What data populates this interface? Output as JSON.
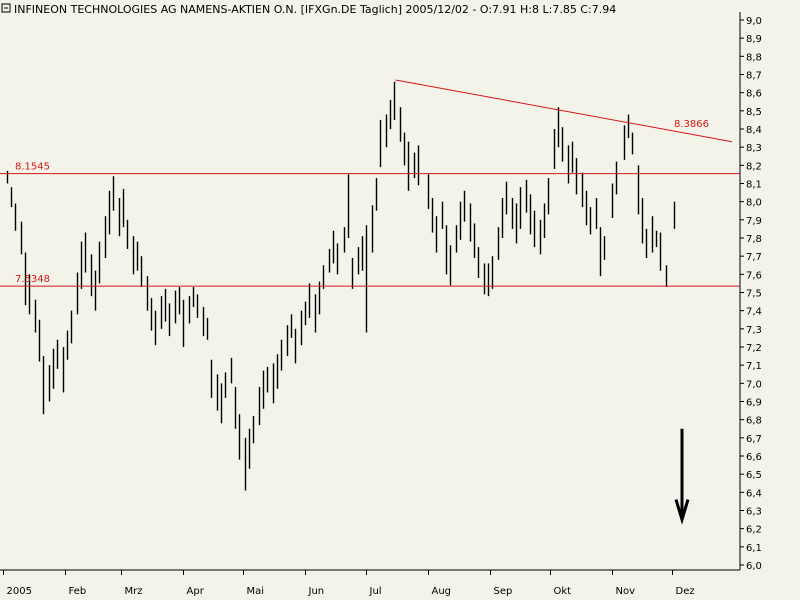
{
  "header": {
    "title": "INFINEON TECHNOLOGIES AG NAMENS-AKTIEN O.N. [IFXGn.DE  Taglich] 2005/12/02 - O:7.91 H:8 L:7.85 C:7.94"
  },
  "colors": {
    "background": "#f3f3ea",
    "bars": "#000000",
    "lines": "#d01818",
    "axis": "#000000"
  },
  "chart_data": {
    "type": "ohlc",
    "title": "",
    "xlabel": "",
    "ylabel": "",
    "ylim": [
      6.0,
      9.0
    ],
    "y_ticks": [
      "9,0",
      "8,9",
      "8,8",
      "8,7",
      "8,6",
      "8,5",
      "8,4",
      "8,3",
      "8,2",
      "8,1",
      "8,0",
      "7,9",
      "7,8",
      "7,7",
      "7,6",
      "7,5",
      "7,4",
      "7,3",
      "7,2",
      "7,1",
      "7,0",
      "6,9",
      "6,8",
      "6,7",
      "6,6",
      "6,5",
      "6,4",
      "6,3",
      "6,2",
      "6,1",
      "6,0"
    ],
    "x_range": [
      "2005-01-01",
      "2005-12-31"
    ],
    "month_ticks": [
      {
        "date": "2005-01-01",
        "label": "2005"
      },
      {
        "date": "2005-02-01",
        "label": "Feb"
      },
      {
        "date": "2005-03-01",
        "label": "Mrz"
      },
      {
        "date": "2005-04-01",
        "label": "Apr"
      },
      {
        "date": "2005-05-01",
        "label": "Mai"
      },
      {
        "date": "2005-06-01",
        "label": "Jun"
      },
      {
        "date": "2005-07-01",
        "label": "Jul"
      },
      {
        "date": "2005-08-01",
        "label": "Aug"
      },
      {
        "date": "2005-09-01",
        "label": "Sep"
      },
      {
        "date": "2005-10-01",
        "label": "Okt"
      },
      {
        "date": "2005-11-01",
        "label": "Nov"
      },
      {
        "date": "2005-12-01",
        "label": "Dez"
      }
    ],
    "ranges": [
      [
        "2005-01-03",
        8.1,
        8.17
      ],
      [
        "2005-01-05",
        7.97,
        8.08
      ],
      [
        "2005-01-07",
        7.84,
        7.99
      ],
      [
        "2005-01-10",
        7.71,
        7.89
      ],
      [
        "2005-01-12",
        7.43,
        7.72
      ],
      [
        "2005-01-14",
        7.38,
        7.6
      ],
      [
        "2005-01-17",
        7.28,
        7.46
      ],
      [
        "2005-01-19",
        7.12,
        7.35
      ],
      [
        "2005-01-21",
        6.83,
        7.15
      ],
      [
        "2005-01-24",
        6.9,
        7.1
      ],
      [
        "2005-01-26",
        6.97,
        7.19
      ],
      [
        "2005-01-28",
        7.08,
        7.24
      ],
      [
        "2005-01-31",
        6.95,
        7.2
      ],
      [
        "2005-02-02",
        7.13,
        7.29
      ],
      [
        "2005-02-04",
        7.22,
        7.4
      ],
      [
        "2005-02-07",
        7.38,
        7.61
      ],
      [
        "2005-02-09",
        7.52,
        7.78
      ],
      [
        "2005-02-11",
        7.61,
        7.83
      ],
      [
        "2005-02-14",
        7.48,
        7.71
      ],
      [
        "2005-02-16",
        7.4,
        7.62
      ],
      [
        "2005-02-18",
        7.55,
        7.78
      ],
      [
        "2005-02-21",
        7.69,
        7.92
      ],
      [
        "2005-02-23",
        7.82,
        8.06
      ],
      [
        "2005-02-25",
        7.95,
        8.14
      ],
      [
        "2005-02-28",
        7.81,
        8.02
      ],
      [
        "2005-03-02",
        7.86,
        8.07
      ],
      [
        "2005-03-04",
        7.74,
        7.9
      ],
      [
        "2005-03-07",
        7.6,
        7.81
      ],
      [
        "2005-03-09",
        7.62,
        7.78
      ],
      [
        "2005-03-11",
        7.53,
        7.7
      ],
      [
        "2005-03-14",
        7.4,
        7.59
      ],
      [
        "2005-03-16",
        7.29,
        7.47
      ],
      [
        "2005-03-18",
        7.21,
        7.4
      ],
      [
        "2005-03-21",
        7.3,
        7.48
      ],
      [
        "2005-03-23",
        7.34,
        7.52
      ],
      [
        "2005-03-25",
        7.26,
        7.44
      ],
      [
        "2005-03-28",
        7.33,
        7.51
      ],
      [
        "2005-03-30",
        7.38,
        7.53
      ],
      [
        "2005-04-01",
        7.2,
        7.46
      ],
      [
        "2005-04-04",
        7.33,
        7.48
      ],
      [
        "2005-04-06",
        7.42,
        7.53
      ],
      [
        "2005-04-08",
        7.36,
        7.49
      ],
      [
        "2005-04-11",
        7.26,
        7.42
      ],
      [
        "2005-04-13",
        7.24,
        7.36
      ],
      [
        "2005-04-15",
        6.92,
        7.13
      ],
      [
        "2005-04-18",
        6.85,
        7.05
      ],
      [
        "2005-04-20",
        6.78,
        7.0
      ],
      [
        "2005-04-22",
        6.92,
        7.06
      ],
      [
        "2005-04-25",
        7.0,
        7.14
      ],
      [
        "2005-04-27",
        6.75,
        6.98
      ],
      [
        "2005-04-29",
        6.58,
        6.83
      ],
      [
        "2005-05-02",
        6.41,
        6.7
      ],
      [
        "2005-05-04",
        6.53,
        6.75
      ],
      [
        "2005-05-06",
        6.67,
        6.82
      ],
      [
        "2005-05-09",
        6.77,
        6.98
      ],
      [
        "2005-05-11",
        6.86,
        7.07
      ],
      [
        "2005-05-13",
        6.95,
        7.09
      ],
      [
        "2005-05-16",
        6.89,
        7.11
      ],
      [
        "2005-05-18",
        6.97,
        7.16
      ],
      [
        "2005-05-20",
        7.07,
        7.24
      ],
      [
        "2005-05-23",
        7.15,
        7.32
      ],
      [
        "2005-05-25",
        7.25,
        7.38
      ],
      [
        "2005-05-27",
        7.11,
        7.3
      ],
      [
        "2005-05-30",
        7.21,
        7.4
      ],
      [
        "2005-06-01",
        7.32,
        7.45
      ],
      [
        "2005-06-03",
        7.36,
        7.55
      ],
      [
        "2005-06-06",
        7.28,
        7.49
      ],
      [
        "2005-06-08",
        7.38,
        7.56
      ],
      [
        "2005-06-10",
        7.52,
        7.65
      ],
      [
        "2005-06-13",
        7.61,
        7.74
      ],
      [
        "2005-06-15",
        7.66,
        7.84
      ],
      [
        "2005-06-17",
        7.6,
        7.77
      ],
      [
        "2005-06-20",
        7.72,
        7.86
      ],
      [
        "2005-06-22",
        7.8,
        8.15
      ],
      [
        "2005-06-24",
        7.52,
        7.69
      ],
      [
        "2005-06-27",
        7.6,
        7.75
      ],
      [
        "2005-06-29",
        7.62,
        7.81
      ],
      [
        "2005-07-01",
        7.28,
        7.87
      ],
      [
        "2005-07-04",
        7.72,
        7.98
      ],
      [
        "2005-07-06",
        7.95,
        8.13
      ],
      [
        "2005-07-08",
        8.19,
        8.45
      ],
      [
        "2005-07-11",
        8.3,
        8.48
      ],
      [
        "2005-07-13",
        8.4,
        8.56
      ],
      [
        "2005-07-15",
        8.45,
        8.66
      ],
      [
        "2005-07-18",
        8.33,
        8.52
      ],
      [
        "2005-07-20",
        8.2,
        8.38
      ],
      [
        "2005-07-22",
        8.06,
        8.33
      ],
      [
        "2005-07-25",
        8.13,
        8.27
      ],
      [
        "2005-07-27",
        8.09,
        8.31
      ],
      [
        "2005-08-01",
        7.96,
        8.15
      ],
      [
        "2005-08-03",
        7.83,
        8.02
      ],
      [
        "2005-08-05",
        7.72,
        7.92
      ],
      [
        "2005-08-08",
        7.85,
        8.0
      ],
      [
        "2005-08-10",
        7.6,
        7.87
      ],
      [
        "2005-08-12",
        7.54,
        7.76
      ],
      [
        "2005-08-15",
        7.72,
        7.87
      ],
      [
        "2005-08-17",
        7.79,
        8.0
      ],
      [
        "2005-08-19",
        7.89,
        8.06
      ],
      [
        "2005-08-22",
        7.78,
        7.99
      ],
      [
        "2005-08-24",
        7.69,
        7.88
      ],
      [
        "2005-08-26",
        7.58,
        7.75
      ],
      [
        "2005-08-29",
        7.49,
        7.66
      ],
      [
        "2005-08-31",
        7.48,
        7.66
      ],
      [
        "2005-09-02",
        7.52,
        7.7
      ],
      [
        "2005-09-05",
        7.68,
        7.86
      ],
      [
        "2005-09-07",
        7.8,
        8.02
      ],
      [
        "2005-09-09",
        7.93,
        8.11
      ],
      [
        "2005-09-12",
        7.85,
        8.02
      ],
      [
        "2005-09-14",
        7.77,
        7.99
      ],
      [
        "2005-09-16",
        7.85,
        8.08
      ],
      [
        "2005-09-19",
        7.94,
        8.12
      ],
      [
        "2005-09-21",
        7.82,
        8.04
      ],
      [
        "2005-09-23",
        7.75,
        7.95
      ],
      [
        "2005-09-26",
        7.71,
        7.9
      ],
      [
        "2005-09-28",
        7.8,
        7.99
      ],
      [
        "2005-09-30",
        7.93,
        8.13
      ],
      [
        "2005-10-03",
        8.18,
        8.4
      ],
      [
        "2005-10-05",
        8.3,
        8.52
      ],
      [
        "2005-10-07",
        8.22,
        8.41
      ],
      [
        "2005-10-10",
        8.1,
        8.31
      ],
      [
        "2005-10-12",
        8.16,
        8.33
      ],
      [
        "2005-10-14",
        8.04,
        8.24
      ],
      [
        "2005-10-17",
        7.97,
        8.16
      ],
      [
        "2005-10-19",
        7.87,
        8.06
      ],
      [
        "2005-10-21",
        7.82,
        7.97
      ],
      [
        "2005-10-24",
        7.85,
        8.02
      ],
      [
        "2005-10-26",
        7.59,
        7.86
      ],
      [
        "2005-10-28",
        7.68,
        7.81
      ],
      [
        "2005-11-01",
        7.91,
        8.1
      ],
      [
        "2005-11-03",
        8.04,
        8.22
      ],
      [
        "2005-11-07",
        8.23,
        8.42
      ],
      [
        "2005-11-09",
        8.35,
        8.48
      ],
      [
        "2005-11-11",
        8.26,
        8.38
      ],
      [
        "2005-11-14",
        7.93,
        8.2
      ],
      [
        "2005-11-16",
        7.77,
        8.02
      ],
      [
        "2005-11-18",
        7.69,
        7.85
      ],
      [
        "2005-11-21",
        7.72,
        7.92
      ],
      [
        "2005-11-23",
        7.75,
        7.84
      ],
      [
        "2005-11-25",
        7.62,
        7.83
      ],
      [
        "2005-11-28",
        7.53,
        7.65
      ],
      [
        "2005-12-02",
        7.85,
        8.0
      ]
    ],
    "levels": [
      {
        "value": 8.1545,
        "label": "8.1545"
      },
      {
        "value": 7.5348,
        "label": "7.5348"
      }
    ],
    "trendline": {
      "start": {
        "date": "2005-07-16",
        "value": 8.67
      },
      "end": {
        "date": "2005-12-31",
        "value": 8.33
      },
      "label": "8.3866"
    },
    "arrow": {
      "date": "2005-12-06",
      "from": 6.75,
      "to": 6.25
    }
  }
}
